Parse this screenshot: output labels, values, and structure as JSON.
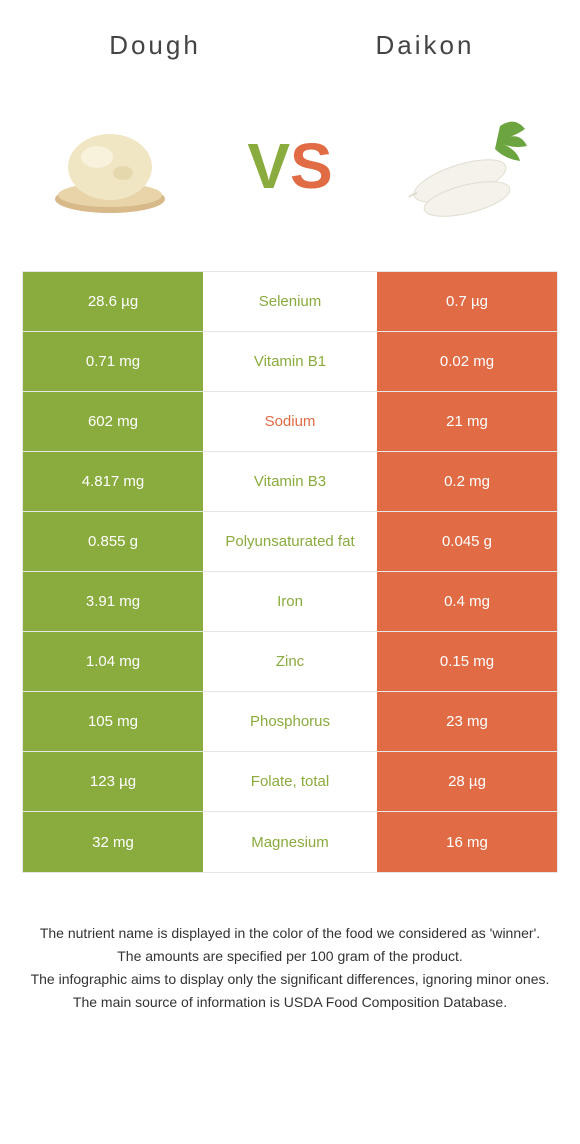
{
  "header": {
    "left_title": "Dough",
    "right_title": "Daikon",
    "vs_v": "V",
    "vs_s": "S"
  },
  "colors": {
    "left_bg": "#8aab3d",
    "right_bg": "#e16b44",
    "mid_left_text": "#8aab3d",
    "mid_right_text": "#e16b44",
    "border": "#e6e6e6",
    "text": "#333333"
  },
  "rows": [
    {
      "left": "28.6 µg",
      "label": "Selenium",
      "right": "0.7 µg",
      "winner": "left"
    },
    {
      "left": "0.71 mg",
      "label": "Vitamin B1",
      "right": "0.02 mg",
      "winner": "left"
    },
    {
      "left": "602 mg",
      "label": "Sodium",
      "right": "21 mg",
      "winner": "right"
    },
    {
      "left": "4.817 mg",
      "label": "Vitamin B3",
      "right": "0.2 mg",
      "winner": "left"
    },
    {
      "left": "0.855 g",
      "label": "Polyunsaturated fat",
      "right": "0.045 g",
      "winner": "left"
    },
    {
      "left": "3.91 mg",
      "label": "Iron",
      "right": "0.4 mg",
      "winner": "left"
    },
    {
      "left": "1.04 mg",
      "label": "Zinc",
      "right": "0.15 mg",
      "winner": "left"
    },
    {
      "left": "105 mg",
      "label": "Phosphorus",
      "right": "23 mg",
      "winner": "left"
    },
    {
      "left": "123 µg",
      "label": "Folate, total",
      "right": "28 µg",
      "winner": "left"
    },
    {
      "left": "32 mg",
      "label": "Magnesium",
      "right": "16 mg",
      "winner": "left"
    }
  ],
  "footnotes": [
    "The nutrient name is displayed in the color of the food we considered as 'winner'.",
    "The amounts are specified per 100 gram of the product.",
    "The infographic aims to display only the significant differences, ignoring minor ones.",
    "The main source of information is USDA Food Composition Database."
  ]
}
